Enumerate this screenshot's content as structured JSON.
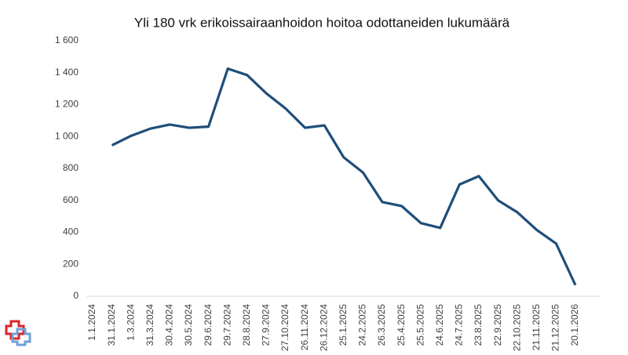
{
  "chart_data": {
    "type": "line",
    "title": "Yli 180 vrk erikoissairaanhoidon hoitoa odottaneiden lukumäärä",
    "categories": [
      "1.1.2024",
      "31.1.2024",
      "1.3.2024",
      "31.3.2024",
      "30.4.2024",
      "30.5.2024",
      "29.6.2024",
      "29.7.2024",
      "28.8.2024",
      "27.9.2024",
      "27.10.2024",
      "26.11.2024",
      "26.12.2024",
      "25.1.2025",
      "24.2.2025",
      "26.3.2025",
      "25.4.2025",
      "25.5.2025",
      "24.6.2025",
      "24.7.2025",
      "23.8.2025",
      "22.9.2025",
      "22.10.2025",
      "21.11.2025",
      "21.12.2025",
      "20.1.2026"
    ],
    "values": [
      null,
      945,
      1005,
      1050,
      1075,
      1055,
      1062,
      1425,
      1385,
      1270,
      1175,
      1055,
      1070,
      870,
      775,
      590,
      565,
      458,
      428,
      700,
      752,
      600,
      525,
      415,
      330,
      70
    ],
    "color": "#1f4e79",
    "ylim": [
      0,
      1600
    ],
    "yticks": [
      0,
      200,
      400,
      600,
      800,
      {
        "value": 1000,
        "label": "1 000"
      },
      {
        "value": 1200,
        "label": "1 200"
      },
      {
        "value": 1400,
        "label": "1 400"
      },
      {
        "value": 1600,
        "label": "1 600"
      }
    ],
    "grid": false
  }
}
